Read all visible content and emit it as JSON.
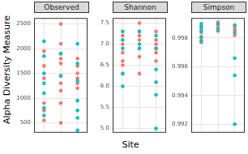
{
  "chart_data": [
    {
      "type": "scatter",
      "title": "Observed",
      "ylabel": "Alpha Diversity Measure",
      "series": [
        {
          "color": "#00BFC4",
          "x": [
            1,
            1,
            1,
            1,
            1,
            1,
            1,
            2,
            2,
            3,
            3,
            3,
            3,
            3,
            3,
            3
          ],
          "values": [
            2150,
            1850,
            1500,
            1300,
            1100,
            800,
            650,
            1900,
            1450,
            2100,
            1700,
            1350,
            950,
            750,
            600,
            350
          ]
        },
        {
          "color": "#F8766D",
          "x": [
            1,
            1,
            1,
            1,
            1,
            1,
            2,
            2,
            2,
            2,
            2,
            2,
            2,
            2,
            2,
            2,
            3,
            3,
            3,
            3,
            3,
            3
          ],
          "values": [
            1950,
            1650,
            1400,
            900,
            750,
            550,
            2500,
            2100,
            1900,
            1800,
            1700,
            1450,
            1300,
            1150,
            900,
            500,
            1800,
            1650,
            1500,
            1400,
            1300,
            1200
          ]
        }
      ],
      "xlim": [
        0.4,
        3.6
      ],
      "xticks": [
        1,
        2,
        3
      ],
      "ylim": [
        300,
        2620
      ],
      "yticks": [
        500,
        1000,
        1500,
        2000,
        2500
      ],
      "grid": true,
      "tick_labels": "y"
    },
    {
      "type": "scatter",
      "title": "Shannon",
      "xlabel": "Site",
      "series": [
        {
          "color": "#00BFC4",
          "x": [
            1,
            1,
            1,
            1,
            1,
            2,
            2,
            2,
            3,
            3,
            3,
            3,
            3,
            3
          ],
          "values": [
            7.3,
            7.1,
            6.9,
            6.3,
            6.0,
            7.3,
            7.0,
            6.9,
            7.2,
            6.9,
            6.4,
            6.1,
            5.8,
            5.0
          ]
        },
        {
          "color": "#F8766D",
          "x": [
            1,
            1,
            1,
            1,
            1,
            1,
            2,
            2,
            2,
            2,
            2,
            2,
            2,
            3,
            3,
            3,
            3,
            3,
            3
          ],
          "values": [
            7.2,
            7.0,
            6.8,
            6.6,
            6.5,
            6.3,
            7.5,
            7.3,
            7.2,
            7.1,
            6.9,
            6.7,
            6.3,
            7.3,
            7.1,
            7.0,
            6.9,
            6.8,
            6.6
          ]
        }
      ],
      "xlim": [
        0.4,
        3.6
      ],
      "xticks": [
        1,
        2,
        3
      ],
      "ylim": [
        4.9,
        7.62
      ],
      "yticks": [
        {
          "value": 5,
          "label": "5.0"
        },
        {
          "value": 5.5,
          "label": "5.5"
        },
        {
          "value": 6,
          "label": "6.0"
        },
        {
          "value": 6.5,
          "label": "6.5"
        },
        {
          "value": 7,
          "label": "7.0"
        },
        {
          "value": 7.5,
          "label": "7.5"
        }
      ],
      "grid": true,
      "tick_labels": "y"
    },
    {
      "type": "scatter",
      "title": "Simpson",
      "series": [
        {
          "color": "#00BFC4",
          "x": [
            1,
            1,
            1,
            1,
            1,
            2,
            2,
            3,
            3,
            3,
            3,
            3
          ],
          "values": [
            0.999,
            0.9988,
            0.9985,
            0.9981,
            0.9978,
            0.999,
            0.9986,
            0.9989,
            0.9984,
            0.9966,
            0.9954,
            0.992
          ]
        },
        {
          "color": "#F8766D",
          "x": [
            1,
            1,
            1,
            1,
            2,
            2,
            2,
            2,
            3,
            3,
            3
          ],
          "values": [
            0.9987,
            0.9984,
            0.998,
            0.9977,
            0.9991,
            0.9989,
            0.9987,
            0.9985,
            0.9988,
            0.9986,
            0.9982
          ]
        }
      ],
      "xlim": [
        0.4,
        3.6
      ],
      "xticks": [
        1,
        2,
        3
      ],
      "ylim": [
        0.9914,
        0.9994
      ],
      "yticks": [
        0.992,
        0.994,
        0.996,
        0.998
      ],
      "grid": true,
      "tick_labels": "y"
    }
  ]
}
